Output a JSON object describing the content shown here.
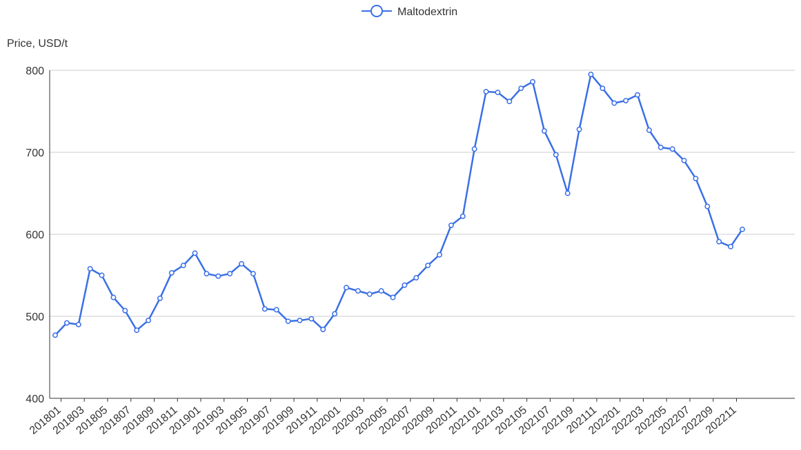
{
  "chart_data": {
    "type": "line",
    "ylabel": "Price, USD/t",
    "ylim": [
      400,
      800
    ],
    "yticks": [
      400,
      500,
      600,
      700,
      800
    ],
    "grid": "horizontal",
    "legend_position": "top-center",
    "x_tick_labels": [
      "201801",
      "201803",
      "201805",
      "201807",
      "201809",
      "201811",
      "201901",
      "201903",
      "201905",
      "201907",
      "201909",
      "201911",
      "202001",
      "202003",
      "202005",
      "202007",
      "202009",
      "202011",
      "202101",
      "202103",
      "202105",
      "202107",
      "202109",
      "202111",
      "202201",
      "202203",
      "202205",
      "202207",
      "202209",
      "202211"
    ],
    "categories": [
      "201801",
      "201802",
      "201803",
      "201804",
      "201805",
      "201806",
      "201807",
      "201808",
      "201809",
      "201810",
      "201811",
      "201812",
      "201901",
      "201902",
      "201903",
      "201904",
      "201905",
      "201906",
      "201907",
      "201908",
      "201909",
      "201910",
      "201911",
      "201912",
      "202001",
      "202002",
      "202003",
      "202004",
      "202005",
      "202006",
      "202007",
      "202008",
      "202009",
      "202010",
      "202011",
      "202012",
      "202101",
      "202102",
      "202103",
      "202104",
      "202105",
      "202106",
      "202107",
      "202108",
      "202109",
      "202110",
      "202111",
      "202112",
      "202201",
      "202202",
      "202203",
      "202204",
      "202205",
      "202206",
      "202207",
      "202208",
      "202209",
      "202210",
      "202211",
      "202212"
    ],
    "series": [
      {
        "name": "Maltodextrin",
        "color": "#3a6fe6",
        "values": [
          477,
          492,
          490,
          558,
          550,
          523,
          507,
          483,
          495,
          522,
          553,
          562,
          577,
          552,
          549,
          552,
          564,
          552,
          509,
          508,
          494,
          495,
          497,
          484,
          503,
          535,
          531,
          527,
          531,
          523,
          538,
          547,
          562,
          575,
          611,
          622,
          704,
          774,
          773,
          762,
          778,
          786,
          726,
          697,
          650,
          728,
          795,
          778,
          760,
          763,
          770,
          727,
          706,
          704,
          690,
          668,
          634,
          591,
          585,
          606
        ]
      }
    ]
  }
}
